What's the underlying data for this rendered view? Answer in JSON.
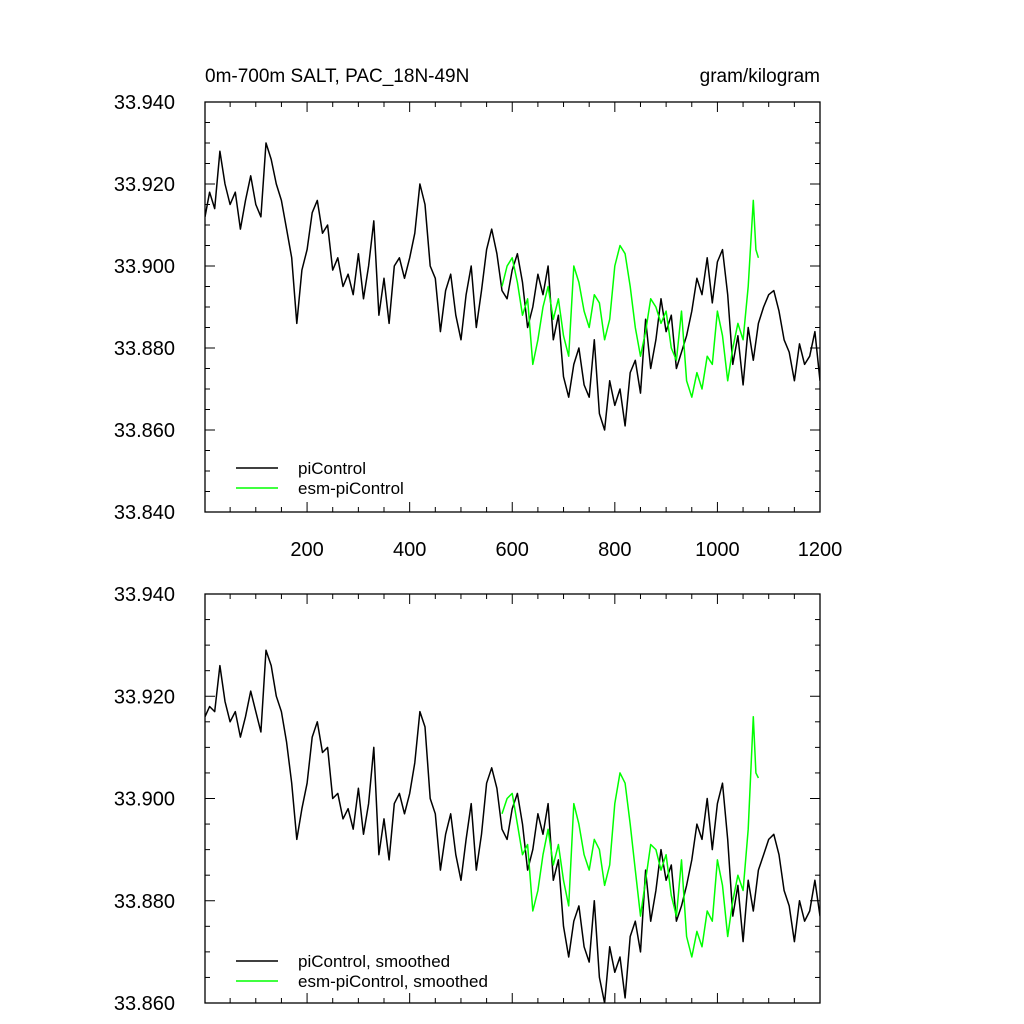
{
  "chart_data": [
    {
      "type": "line",
      "title": "0m-700m SALT, PAC_18N-49N",
      "units": "gram/kilogram",
      "xlim": [
        1,
        1200
      ],
      "ylim": [
        33.84,
        33.94
      ],
      "xticks": [
        200,
        400,
        600,
        800,
        1000,
        1200
      ],
      "xtick_labels": [
        "200",
        "400",
        "600",
        "800",
        "1000",
        "1200"
      ],
      "yticks": [
        33.84,
        33.86,
        33.88,
        33.9,
        33.92,
        33.94
      ],
      "ytick_labels": [
        "33.840",
        "33.860",
        "33.880",
        "33.900",
        "33.920",
        "33.940"
      ],
      "legend": [
        "piControl",
        "esm-piControl"
      ],
      "legend_position": "bottom-left",
      "series": [
        {
          "name": "piControl",
          "color": "#000000",
          "x": [
            1,
            10,
            20,
            30,
            40,
            50,
            60,
            70,
            80,
            90,
            100,
            110,
            120,
            130,
            140,
            150,
            160,
            170,
            180,
            190,
            200,
            210,
            220,
            230,
            240,
            250,
            260,
            270,
            280,
            290,
            300,
            310,
            320,
            330,
            340,
            350,
            360,
            370,
            380,
            390,
            400,
            410,
            420,
            430,
            440,
            450,
            460,
            470,
            480,
            490,
            500,
            510,
            520,
            530,
            540,
            550,
            560,
            570,
            580,
            590,
            600,
            610,
            620,
            630,
            640,
            650,
            660,
            670,
            680,
            690,
            700,
            710,
            720,
            730,
            740,
            750,
            760,
            770,
            780,
            790,
            800,
            810,
            820,
            830,
            840,
            850,
            860,
            870,
            880,
            890,
            900,
            910,
            920,
            930,
            940,
            950,
            960,
            970,
            980,
            990,
            1000,
            1010,
            1020,
            1030,
            1040,
            1050,
            1060,
            1070,
            1080,
            1090,
            1100,
            1110,
            1120,
            1130,
            1140,
            1150,
            1160,
            1170,
            1180,
            1190,
            1200
          ],
          "values": [
            33.912,
            33.918,
            33.914,
            33.928,
            33.92,
            33.915,
            33.918,
            33.909,
            33.916,
            33.922,
            33.915,
            33.912,
            33.93,
            33.926,
            33.92,
            33.916,
            33.909,
            33.902,
            33.886,
            33.899,
            33.904,
            33.913,
            33.916,
            33.908,
            33.91,
            33.899,
            33.902,
            33.895,
            33.898,
            33.893,
            33.903,
            33.892,
            33.9,
            33.911,
            33.888,
            33.897,
            33.886,
            33.9,
            33.902,
            33.897,
            33.902,
            33.908,
            33.92,
            33.915,
            33.9,
            33.897,
            33.884,
            33.894,
            33.898,
            33.888,
            33.882,
            33.893,
            33.9,
            33.885,
            33.894,
            33.904,
            33.909,
            33.903,
            33.894,
            33.892,
            33.899,
            33.903,
            33.896,
            33.885,
            33.89,
            33.898,
            33.893,
            33.9,
            33.882,
            33.888,
            33.873,
            33.868,
            33.876,
            33.88,
            33.871,
            33.868,
            33.882,
            33.864,
            33.86,
            33.872,
            33.866,
            33.87,
            33.861,
            33.874,
            33.877,
            33.869,
            33.887,
            33.875,
            33.882,
            33.892,
            33.884,
            33.888,
            33.875,
            33.879,
            33.883,
            33.889,
            33.897,
            33.893,
            33.902,
            33.891,
            33.901,
            33.904,
            33.893,
            33.876,
            33.883,
            33.871,
            33.885,
            33.877,
            33.886,
            33.89,
            33.893,
            33.894,
            33.889,
            33.882,
            33.879,
            33.872,
            33.881,
            33.876,
            33.878,
            33.884,
            33.872
          ]
        },
        {
          "name": "esm-piControl",
          "color": "#00ff00",
          "x": [
            580,
            590,
            600,
            610,
            620,
            630,
            640,
            650,
            660,
            670,
            680,
            690,
            700,
            710,
            720,
            730,
            740,
            750,
            760,
            770,
            780,
            790,
            800,
            810,
            820,
            830,
            840,
            850,
            860,
            870,
            880,
            890,
            900,
            910,
            920,
            930,
            940,
            950,
            960,
            970,
            980,
            990,
            1000,
            1010,
            1020,
            1030,
            1040,
            1050,
            1060,
            1070,
            1075,
            1080
          ],
          "values": [
            33.895,
            33.9,
            33.902,
            33.896,
            33.888,
            33.892,
            33.876,
            33.882,
            33.89,
            33.895,
            33.887,
            33.892,
            33.883,
            33.878,
            33.9,
            33.896,
            33.889,
            33.885,
            33.893,
            33.891,
            33.882,
            33.887,
            33.9,
            33.905,
            33.903,
            33.895,
            33.885,
            33.878,
            33.884,
            33.892,
            33.89,
            33.886,
            33.889,
            33.88,
            33.877,
            33.889,
            33.872,
            33.868,
            33.874,
            33.87,
            33.878,
            33.876,
            33.889,
            33.883,
            33.872,
            33.88,
            33.886,
            33.882,
            33.895,
            33.916,
            33.904,
            33.902
          ]
        }
      ]
    },
    {
      "type": "line",
      "xlim": [
        1,
        1200
      ],
      "ylim": [
        33.86,
        33.94
      ],
      "xticks": [
        200,
        400,
        600,
        800,
        1000,
        1200
      ],
      "yticks": [
        33.86,
        33.88,
        33.9,
        33.92,
        33.94
      ],
      "ytick_labels": [
        "33.860",
        "33.880",
        "33.900",
        "33.920",
        "33.940"
      ],
      "legend": [
        "piControl, smoothed",
        "esm-piControl, smoothed"
      ],
      "legend_position": "bottom-left",
      "series": [
        {
          "name": "piControl, smoothed",
          "color": "#000000",
          "x": [
            1,
            10,
            20,
            30,
            40,
            50,
            60,
            70,
            80,
            90,
            100,
            110,
            120,
            130,
            140,
            150,
            160,
            170,
            180,
            190,
            200,
            210,
            220,
            230,
            240,
            250,
            260,
            270,
            280,
            290,
            300,
            310,
            320,
            330,
            340,
            350,
            360,
            370,
            380,
            390,
            400,
            410,
            420,
            430,
            440,
            450,
            460,
            470,
            480,
            490,
            500,
            510,
            520,
            530,
            540,
            550,
            560,
            570,
            580,
            590,
            600,
            610,
            620,
            630,
            640,
            650,
            660,
            670,
            680,
            690,
            700,
            710,
            720,
            730,
            740,
            750,
            760,
            770,
            780,
            790,
            800,
            810,
            820,
            830,
            840,
            850,
            860,
            870,
            880,
            890,
            900,
            910,
            920,
            930,
            940,
            950,
            960,
            970,
            980,
            990,
            1000,
            1010,
            1020,
            1030,
            1040,
            1050,
            1060,
            1070,
            1080,
            1090,
            1100,
            1110,
            1120,
            1130,
            1140,
            1150,
            1160,
            1170,
            1180,
            1190,
            1200
          ],
          "values": [
            33.916,
            33.918,
            33.917,
            33.926,
            33.919,
            33.915,
            33.917,
            33.912,
            33.916,
            33.921,
            33.917,
            33.913,
            33.929,
            33.926,
            33.92,
            33.917,
            33.911,
            33.903,
            33.892,
            33.898,
            33.903,
            33.912,
            33.915,
            33.909,
            33.91,
            33.9,
            33.901,
            33.896,
            33.898,
            33.894,
            33.902,
            33.893,
            33.899,
            33.91,
            33.889,
            33.896,
            33.888,
            33.899,
            33.901,
            33.897,
            33.901,
            33.907,
            33.917,
            33.914,
            33.9,
            33.897,
            33.886,
            33.893,
            33.897,
            33.889,
            33.884,
            33.892,
            33.899,
            33.886,
            33.893,
            33.903,
            33.906,
            33.902,
            33.894,
            33.892,
            33.898,
            33.901,
            33.895,
            33.886,
            33.89,
            33.897,
            33.893,
            33.899,
            33.884,
            33.888,
            33.875,
            33.869,
            33.876,
            33.879,
            33.871,
            33.868,
            33.88,
            33.865,
            33.86,
            33.871,
            33.866,
            33.869,
            33.861,
            33.873,
            33.876,
            33.87,
            33.886,
            33.876,
            33.882,
            33.89,
            33.884,
            33.887,
            33.876,
            33.879,
            33.883,
            33.888,
            33.895,
            33.892,
            33.9,
            33.89,
            33.899,
            33.903,
            33.892,
            33.877,
            33.883,
            33.872,
            33.884,
            33.878,
            33.886,
            33.889,
            33.892,
            33.893,
            33.889,
            33.882,
            33.879,
            33.872,
            33.88,
            33.876,
            33.878,
            33.884,
            33.877
          ]
        },
        {
          "name": "esm-piControl, smoothed",
          "color": "#00ff00",
          "x": [
            580,
            590,
            600,
            610,
            620,
            630,
            640,
            650,
            660,
            670,
            680,
            690,
            700,
            710,
            720,
            730,
            740,
            750,
            760,
            770,
            780,
            790,
            800,
            810,
            820,
            830,
            840,
            850,
            860,
            870,
            880,
            890,
            900,
            910,
            920,
            930,
            940,
            950,
            960,
            970,
            980,
            990,
            1000,
            1010,
            1020,
            1030,
            1040,
            1050,
            1060,
            1070,
            1075,
            1080
          ],
          "values": [
            33.897,
            33.9,
            33.901,
            33.895,
            33.889,
            33.891,
            33.878,
            33.882,
            33.889,
            33.894,
            33.887,
            33.891,
            33.884,
            33.879,
            33.899,
            33.895,
            33.889,
            33.886,
            33.892,
            33.89,
            33.883,
            33.887,
            33.899,
            33.905,
            33.903,
            33.895,
            33.886,
            33.877,
            33.884,
            33.891,
            33.89,
            33.886,
            33.889,
            33.881,
            33.877,
            33.888,
            33.873,
            33.869,
            33.874,
            33.871,
            33.878,
            33.876,
            33.888,
            33.883,
            33.873,
            33.88,
            33.885,
            33.882,
            33.894,
            33.916,
            33.905,
            33.904
          ]
        }
      ]
    }
  ]
}
